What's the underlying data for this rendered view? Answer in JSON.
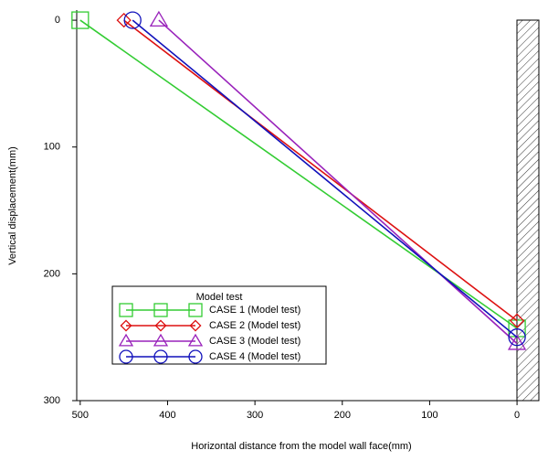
{
  "chart_data": {
    "type": "line",
    "x_label": "Horizontal distance from the model wall face(mm)",
    "y_label": "Vertical displacement(mm)",
    "xlim": [
      504,
      -25
    ],
    "xticks": [
      500,
      400,
      300,
      200,
      100,
      0
    ],
    "ylim": [
      -8,
      300
    ],
    "yticks": [
      0,
      100,
      200,
      300
    ],
    "legend_title": "Model test",
    "legend_position": "lower left",
    "series": [
      {
        "name": "CASE 1 (Model test)",
        "color": "#33cc33",
        "marker": "square",
        "x": [
          500,
          0
        ],
        "values": [
          0,
          243
        ]
      },
      {
        "name": "CASE 2 (Model test)",
        "color": "#dd1111",
        "marker": "diamond",
        "x": [
          450,
          0
        ],
        "values": [
          0,
          237
        ]
      },
      {
        "name": "CASE 3 (Model test)",
        "color": "#9922bb",
        "marker": "triangle",
        "x": [
          410,
          0
        ],
        "values": [
          0,
          255
        ]
      },
      {
        "name": "CASE 4 (Model test)",
        "color": "#1111bb",
        "marker": "circle",
        "x": [
          440,
          0
        ],
        "values": [
          0,
          250
        ]
      }
    ]
  }
}
